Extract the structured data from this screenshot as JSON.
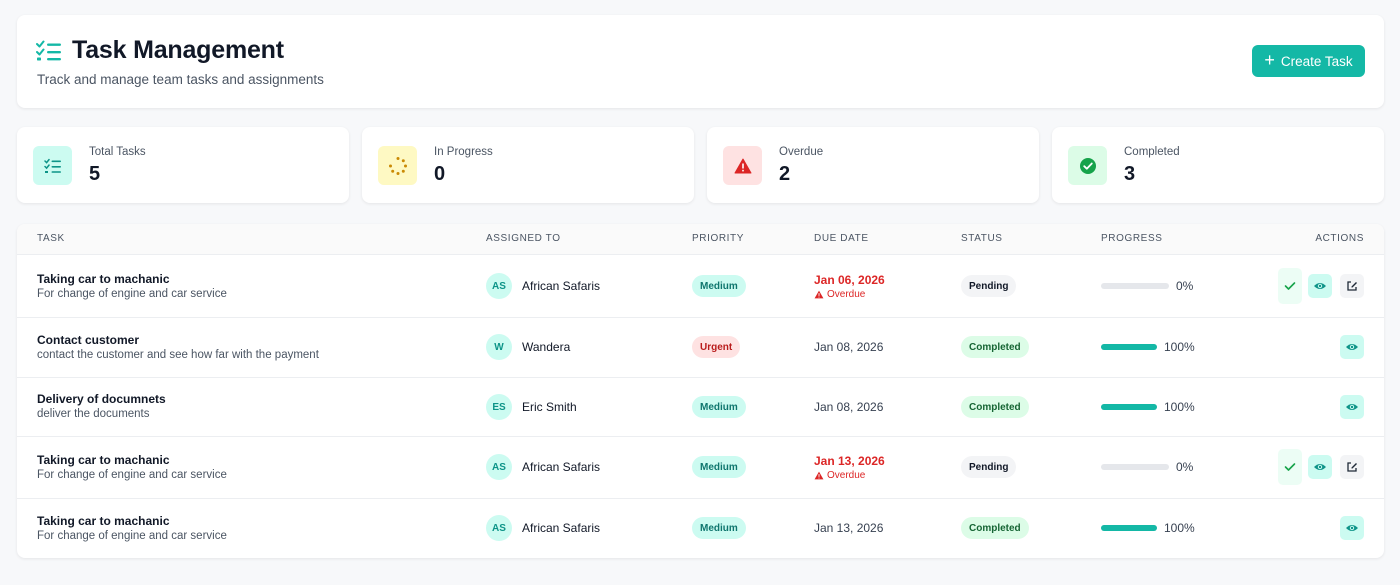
{
  "header": {
    "title": "Task Management",
    "subtitle": "Track and manage team tasks and assignments",
    "create_button": "Create Task"
  },
  "stats": [
    {
      "label": "Total Tasks",
      "value": "5",
      "icon": "task-list-icon",
      "color": "#0d9488"
    },
    {
      "label": "In Progress",
      "value": "0",
      "icon": "spinner-icon",
      "color": "#ca8a04"
    },
    {
      "label": "Overdue",
      "value": "2",
      "icon": "warning-icon",
      "color": "#dc2626"
    },
    {
      "label": "Completed",
      "value": "3",
      "icon": "check-circle-icon",
      "color": "#16a34a"
    }
  ],
  "table": {
    "columns": [
      "TASK",
      "ASSIGNED TO",
      "PRIORITY",
      "DUE DATE",
      "STATUS",
      "PROGRESS",
      "ACTIONS"
    ],
    "rows": [
      {
        "title": "Taking car to machanic",
        "desc": "For change of engine and car service",
        "initials": "AS",
        "assignee": "African Safaris",
        "priority": "Medium",
        "due": "Jan 06, 2026",
        "overdue": "Overdue",
        "status": "Pending",
        "progress": 0,
        "progress_text": "0%"
      },
      {
        "title": "Contact customer",
        "desc": "contact the customer and see how far with the payment",
        "initials": "W",
        "assignee": "Wandera",
        "priority": "Urgent",
        "due": "Jan 08, 2026",
        "overdue": "",
        "status": "Completed",
        "progress": 100,
        "progress_text": "100%"
      },
      {
        "title": "Delivery of documnets",
        "desc": "deliver the documents",
        "initials": "ES",
        "assignee": "Eric Smith",
        "priority": "Medium",
        "due": "Jan 08, 2026",
        "overdue": "",
        "status": "Completed",
        "progress": 100,
        "progress_text": "100%"
      },
      {
        "title": "Taking car to machanic",
        "desc": "For change of engine and car service",
        "initials": "AS",
        "assignee": "African Safaris",
        "priority": "Medium",
        "due": "Jan 13, 2026",
        "overdue": "Overdue",
        "status": "Pending",
        "progress": 0,
        "progress_text": "0%"
      },
      {
        "title": "Taking car to machanic",
        "desc": "For change of engine and car service",
        "initials": "AS",
        "assignee": "African Safaris",
        "priority": "Medium",
        "due": "Jan 13, 2026",
        "overdue": "",
        "status": "Completed",
        "progress": 100,
        "progress_text": "100%"
      }
    ]
  },
  "colors": {
    "accent": "#14b8a6",
    "danger": "#dc2626",
    "success": "#16a34a"
  }
}
